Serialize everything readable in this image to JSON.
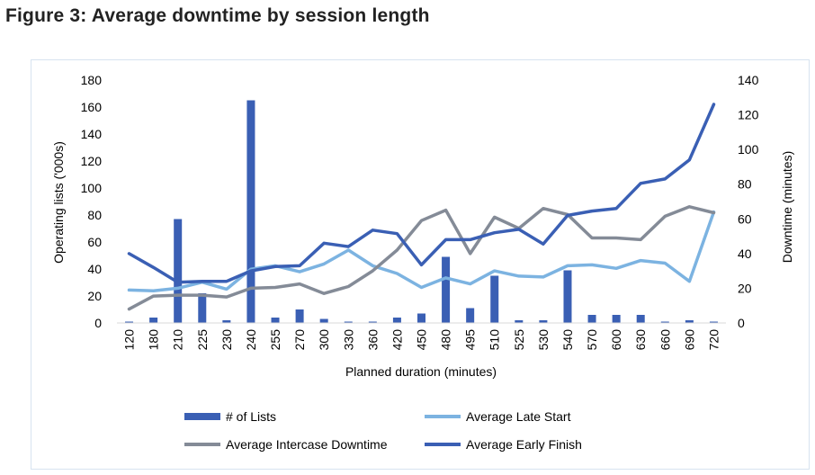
{
  "title": "Figure 3: Average downtime by session length",
  "chart_data": {
    "type": "bar+line",
    "categories": [
      "120",
      "180",
      "210",
      "225",
      "230",
      "240",
      "255",
      "270",
      "300",
      "330",
      "360",
      "420",
      "450",
      "480",
      "495",
      "510",
      "525",
      "530",
      "540",
      "570",
      "600",
      "630",
      "660",
      "690",
      "720"
    ],
    "xlabel": "Planned  duration  (minutes)",
    "ylabel_left": "Operating  lists  ('000s)",
    "ylabel_right": "Downtime  (minutes)",
    "ylim_left": [
      0,
      180
    ],
    "ylim_right": [
      0,
      140
    ],
    "yticks_left": [
      "0",
      "20",
      "40",
      "60",
      "80",
      "100",
      "120",
      "140",
      "160",
      "180"
    ],
    "yticks_right": [
      "0",
      "20",
      "40",
      "60",
      "80",
      "100",
      "120",
      "140"
    ],
    "grid": false,
    "legend_position": "bottom",
    "series": [
      {
        "name": "# of Lists",
        "kind": "bar",
        "axis": "left",
        "color": "#3a5fb4",
        "values": [
          1,
          4,
          77,
          22,
          2,
          165,
          4,
          10,
          3,
          1,
          1,
          4,
          7,
          49,
          11,
          35,
          2,
          2,
          39,
          6,
          6,
          6,
          1,
          2,
          1
        ]
      },
      {
        "name": "Average Late Start",
        "kind": "line",
        "axis": "right",
        "color": "#7cb3e1",
        "values": [
          19,
          18.5,
          20,
          23.5,
          19.5,
          31,
          33,
          29.5,
          34,
          42,
          33,
          28.5,
          20.5,
          26,
          22.5,
          30,
          27,
          26.5,
          33,
          33.5,
          31.5,
          36,
          34.5,
          24,
          64
        ]
      },
      {
        "name": "Average Intercase Downtime",
        "kind": "line",
        "axis": "right",
        "color": "#848b97",
        "values": [
          8,
          15.5,
          16,
          16,
          15,
          20,
          20.5,
          22.5,
          17,
          21,
          30,
          42,
          59,
          65,
          40,
          61,
          54.5,
          66,
          62.5,
          49,
          49,
          48,
          61.5,
          67,
          63.5
        ]
      },
      {
        "name": "Average Early Finish",
        "kind": "line",
        "axis": "right",
        "color": "#3a5fb4",
        "values": [
          40,
          32,
          23.5,
          24,
          24,
          30,
          32.5,
          33,
          46,
          44,
          53.5,
          51.5,
          33.5,
          48,
          48,
          52,
          54,
          45.5,
          62,
          64.5,
          66,
          80.5,
          83,
          94,
          126
        ]
      }
    ]
  }
}
